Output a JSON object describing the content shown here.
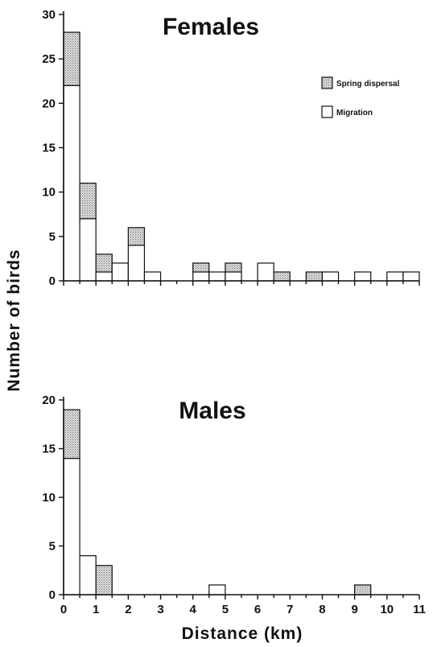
{
  "y_axis_title": "Number of birds",
  "x_axis_title": "Distance (km)",
  "legend": {
    "spring": "Spring dispersal",
    "migration": "Migration"
  },
  "colors": {
    "migration_fill": "#ffffff",
    "spring_fill": "stippled gray",
    "outline": "#111111"
  },
  "chart_data": [
    {
      "type": "bar",
      "stacked": true,
      "title": "Females",
      "xlabel": "Distance (km)",
      "ylabel": "Number of birds",
      "bin_width": 0.5,
      "x_bin_starts": [
        0,
        0.5,
        1,
        1.5,
        2,
        2.5,
        3,
        3.5,
        4,
        4.5,
        5,
        5.5,
        6,
        6.5,
        7,
        7.5,
        8,
        8.5,
        9,
        9.5,
        10,
        10.5
      ],
      "series": [
        {
          "name": "Migration",
          "values": [
            22,
            7,
            1,
            2,
            4,
            1,
            0,
            0,
            1,
            1,
            1,
            0,
            2,
            0,
            0,
            0,
            1,
            0,
            1,
            0,
            1,
            1
          ]
        },
        {
          "name": "Spring dispersal",
          "values": [
            6,
            4,
            2,
            0,
            2,
            0,
            0,
            0,
            1,
            0,
            1,
            0,
            0,
            1,
            0,
            1,
            0,
            0,
            0,
            0,
            0,
            0
          ]
        }
      ],
      "xlim": [
        0,
        11
      ],
      "ylim": [
        0,
        30
      ],
      "x_ticks": [
        "0",
        "1",
        "2",
        "3",
        "4",
        "5",
        "6",
        "7",
        "8",
        "9",
        "10",
        "11"
      ],
      "y_ticks": [
        "0",
        "5",
        "10",
        "15",
        "20",
        "25",
        "30"
      ],
      "legend_position": "top-right"
    },
    {
      "type": "bar",
      "stacked": true,
      "title": "Males",
      "xlabel": "Distance (km)",
      "ylabel": "Number of birds",
      "bin_width": 0.5,
      "x_bin_starts": [
        0,
        0.5,
        1,
        1.5,
        2,
        2.5,
        3,
        3.5,
        4,
        4.5,
        5,
        5.5,
        6,
        6.5,
        7,
        7.5,
        8,
        8.5,
        9,
        9.5,
        10,
        10.5
      ],
      "series": [
        {
          "name": "Migration",
          "values": [
            14,
            4,
            0,
            0,
            0,
            0,
            0,
            0,
            0,
            1,
            0,
            0,
            0,
            0,
            0,
            0,
            0,
            0,
            0,
            0,
            0,
            0
          ]
        },
        {
          "name": "Spring dispersal",
          "values": [
            5,
            0,
            3,
            0,
            0,
            0,
            0,
            0,
            0,
            0,
            0,
            0,
            0,
            0,
            0,
            0,
            0,
            0,
            1,
            0,
            0,
            0
          ]
        }
      ],
      "xlim": [
        0,
        11
      ],
      "ylim": [
        0,
        20
      ],
      "x_ticks": [
        "0",
        "1",
        "2",
        "3",
        "4",
        "5",
        "6",
        "7",
        "8",
        "9",
        "10",
        "11"
      ],
      "y_ticks": [
        "0",
        "5",
        "10",
        "15",
        "20"
      ]
    }
  ]
}
